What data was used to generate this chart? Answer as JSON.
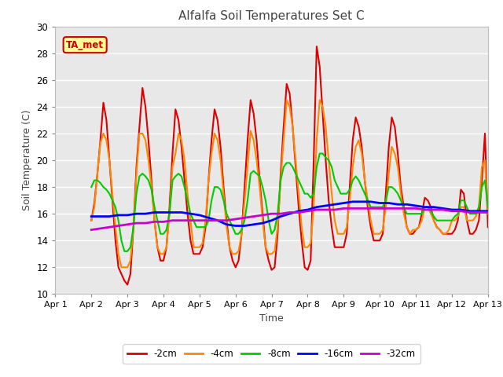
{
  "title": "Alfalfa Soil Temperatures Set C",
  "xlabel": "Time",
  "ylabel": "Soil Temperature (C)",
  "ylim": [
    10,
    30
  ],
  "xlim": [
    0,
    12
  ],
  "xtick_labels": [
    "Apr 1",
    "Apr 2",
    "Apr 3",
    "Apr 4",
    "Apr 5",
    "Apr 6",
    "Apr 7",
    "Apr 8",
    "Apr 9",
    "Apr 10",
    "Apr 11",
    "Apr 12",
    "Apr 13"
  ],
  "xtick_positions": [
    0,
    1,
    2,
    3,
    4,
    5,
    6,
    7,
    8,
    9,
    10,
    11,
    12
  ],
  "ytick_positions": [
    10,
    12,
    14,
    16,
    18,
    20,
    22,
    24,
    26,
    28,
    30
  ],
  "background_color": "#e8e8e8",
  "plot_bg_color": "#e8e8e8",
  "grid_color": "#ffffff",
  "annotation_text": "TA_met",
  "annotation_bg": "#ffff99",
  "annotation_border": "#cc0000",
  "series": {
    "neg2cm": {
      "color": "#dd0000",
      "label": "-2cm",
      "x": [
        1.0,
        1.083,
        1.167,
        1.25,
        1.333,
        1.417,
        1.5,
        1.583,
        1.667,
        1.75,
        1.833,
        1.917,
        2.0,
        2.083,
        2.167,
        2.25,
        2.333,
        2.417,
        2.5,
        2.583,
        2.667,
        2.75,
        2.833,
        2.917,
        3.0,
        3.083,
        3.167,
        3.25,
        3.333,
        3.417,
        3.5,
        3.583,
        3.667,
        3.75,
        3.833,
        3.917,
        4.0,
        4.083,
        4.167,
        4.25,
        4.333,
        4.417,
        4.5,
        4.583,
        4.667,
        4.75,
        4.833,
        4.917,
        5.0,
        5.083,
        5.167,
        5.25,
        5.333,
        5.417,
        5.5,
        5.583,
        5.667,
        5.75,
        5.833,
        5.917,
        6.0,
        6.083,
        6.167,
        6.25,
        6.333,
        6.417,
        6.5,
        6.583,
        6.667,
        6.75,
        6.833,
        6.917,
        7.0,
        7.083,
        7.167,
        7.25,
        7.333,
        7.417,
        7.5,
        7.583,
        7.667,
        7.75,
        7.833,
        7.917,
        8.0,
        8.083,
        8.167,
        8.25,
        8.333,
        8.417,
        8.5,
        8.583,
        8.667,
        8.75,
        8.833,
        8.917,
        9.0,
        9.083,
        9.167,
        9.25,
        9.333,
        9.417,
        9.5,
        9.583,
        9.667,
        9.75,
        9.833,
        9.917,
        10.0,
        10.083,
        10.167,
        10.25,
        10.333,
        10.417,
        10.5,
        10.583,
        10.667,
        10.75,
        10.833,
        10.917,
        11.0,
        11.083,
        11.167,
        11.25,
        11.333,
        11.417,
        11.5,
        11.583,
        11.667,
        11.75,
        11.833,
        11.917,
        12.0
      ],
      "y": [
        15.5,
        16.8,
        19.0,
        21.5,
        24.3,
        23.0,
        20.0,
        17.0,
        14.0,
        12.0,
        11.5,
        11.0,
        10.7,
        11.5,
        15.0,
        19.5,
        22.5,
        25.4,
        24.0,
        21.5,
        18.5,
        15.5,
        13.5,
        12.5,
        12.5,
        13.5,
        16.5,
        20.5,
        23.8,
        23.0,
        21.0,
        18.5,
        16.0,
        14.0,
        13.0,
        13.0,
        13.0,
        13.5,
        15.0,
        18.5,
        21.5,
        23.8,
        23.0,
        21.0,
        18.0,
        15.5,
        13.5,
        12.5,
        12.0,
        12.5,
        14.5,
        18.0,
        21.5,
        24.5,
        23.5,
        21.5,
        18.5,
        16.0,
        13.5,
        12.5,
        11.8,
        12.0,
        14.5,
        19.0,
        22.5,
        25.7,
        25.0,
        22.5,
        19.5,
        16.5,
        14.0,
        12.0,
        11.8,
        12.5,
        20.0,
        28.5,
        27.0,
        23.5,
        20.0,
        17.0,
        15.0,
        13.5,
        13.5,
        13.5,
        13.5,
        14.5,
        18.0,
        21.5,
        23.2,
        22.5,
        21.0,
        18.5,
        16.5,
        15.0,
        14.0,
        14.0,
        14.0,
        14.5,
        17.5,
        21.0,
        23.2,
        22.5,
        20.5,
        18.0,
        16.5,
        15.0,
        14.5,
        14.5,
        14.8,
        15.0,
        16.0,
        17.2,
        17.0,
        16.5,
        15.5,
        15.0,
        14.8,
        14.5,
        14.5,
        14.5,
        14.5,
        14.8,
        15.5,
        17.8,
        17.5,
        15.5,
        14.5,
        14.5,
        14.8,
        15.5,
        18.5,
        22.0,
        15.0
      ]
    },
    "neg4cm": {
      "color": "#ff8800",
      "label": "-4cm",
      "x": [
        1.0,
        1.083,
        1.167,
        1.25,
        1.333,
        1.417,
        1.5,
        1.583,
        1.667,
        1.75,
        1.833,
        1.917,
        2.0,
        2.083,
        2.167,
        2.25,
        2.333,
        2.417,
        2.5,
        2.583,
        2.667,
        2.75,
        2.833,
        2.917,
        3.0,
        3.083,
        3.167,
        3.25,
        3.333,
        3.417,
        3.5,
        3.583,
        3.667,
        3.75,
        3.833,
        3.917,
        4.0,
        4.083,
        4.167,
        4.25,
        4.333,
        4.417,
        4.5,
        4.583,
        4.667,
        4.75,
        4.833,
        4.917,
        5.0,
        5.083,
        5.167,
        5.25,
        5.333,
        5.417,
        5.5,
        5.583,
        5.667,
        5.75,
        5.833,
        5.917,
        6.0,
        6.083,
        6.167,
        6.25,
        6.333,
        6.417,
        6.5,
        6.583,
        6.667,
        6.75,
        6.833,
        6.917,
        7.0,
        7.083,
        7.167,
        7.25,
        7.333,
        7.417,
        7.5,
        7.583,
        7.667,
        7.75,
        7.833,
        7.917,
        8.0,
        8.083,
        8.167,
        8.25,
        8.333,
        8.417,
        8.5,
        8.583,
        8.667,
        8.75,
        8.833,
        8.917,
        9.0,
        9.083,
        9.167,
        9.25,
        9.333,
        9.417,
        9.5,
        9.583,
        9.667,
        9.75,
        9.833,
        9.917,
        10.0,
        10.083,
        10.167,
        10.25,
        10.333,
        10.417,
        10.5,
        10.583,
        10.667,
        10.75,
        10.833,
        10.917,
        11.0,
        11.083,
        11.167,
        11.25,
        11.333,
        11.417,
        11.5,
        11.583,
        11.667,
        11.75,
        11.833,
        11.917,
        12.0
      ],
      "y": [
        15.5,
        16.5,
        19.0,
        21.3,
        22.0,
        21.5,
        20.0,
        17.5,
        15.0,
        13.0,
        12.0,
        12.0,
        12.0,
        12.5,
        15.0,
        19.0,
        22.0,
        22.0,
        21.5,
        20.0,
        18.0,
        15.5,
        13.5,
        13.0,
        13.0,
        13.5,
        16.0,
        19.5,
        20.5,
        22.0,
        21.5,
        20.0,
        17.5,
        15.5,
        13.5,
        13.5,
        13.5,
        13.8,
        15.5,
        18.5,
        20.5,
        22.0,
        21.5,
        20.0,
        17.5,
        15.0,
        13.5,
        13.0,
        13.0,
        13.2,
        14.5,
        17.0,
        19.5,
        22.2,
        21.5,
        20.0,
        18.0,
        15.5,
        13.5,
        13.0,
        13.0,
        13.2,
        15.0,
        18.5,
        21.5,
        24.5,
        24.0,
        22.5,
        20.0,
        17.5,
        15.0,
        13.5,
        13.5,
        13.8,
        16.5,
        21.5,
        24.5,
        24.0,
        22.5,
        20.0,
        17.5,
        15.5,
        14.5,
        14.5,
        14.5,
        15.0,
        17.0,
        19.5,
        21.0,
        21.5,
        20.5,
        18.5,
        17.0,
        15.5,
        14.5,
        14.5,
        14.5,
        14.8,
        16.5,
        19.0,
        21.0,
        20.5,
        19.5,
        17.5,
        16.0,
        15.0,
        14.5,
        14.8,
        14.8,
        15.0,
        15.5,
        16.5,
        16.5,
        16.0,
        15.5,
        15.0,
        14.8,
        14.5,
        14.5,
        14.8,
        15.5,
        15.5,
        15.8,
        16.5,
        16.5,
        15.5,
        15.5,
        15.5,
        15.8,
        16.5,
        19.5,
        20.0,
        16.0
      ]
    },
    "neg8cm": {
      "color": "#00cc00",
      "label": "-8cm",
      "x": [
        1.0,
        1.083,
        1.167,
        1.25,
        1.333,
        1.417,
        1.5,
        1.583,
        1.667,
        1.75,
        1.833,
        1.917,
        2.0,
        2.083,
        2.167,
        2.25,
        2.333,
        2.417,
        2.5,
        2.583,
        2.667,
        2.75,
        2.833,
        2.917,
        3.0,
        3.083,
        3.167,
        3.25,
        3.333,
        3.417,
        3.5,
        3.583,
        3.667,
        3.75,
        3.833,
        3.917,
        4.0,
        4.083,
        4.167,
        4.25,
        4.333,
        4.417,
        4.5,
        4.583,
        4.667,
        4.75,
        4.833,
        4.917,
        5.0,
        5.083,
        5.167,
        5.25,
        5.333,
        5.417,
        5.5,
        5.583,
        5.667,
        5.75,
        5.833,
        5.917,
        6.0,
        6.083,
        6.167,
        6.25,
        6.333,
        6.417,
        6.5,
        6.583,
        6.667,
        6.75,
        6.833,
        6.917,
        7.0,
        7.083,
        7.167,
        7.25,
        7.333,
        7.417,
        7.5,
        7.583,
        7.667,
        7.75,
        7.833,
        7.917,
        8.0,
        8.083,
        8.167,
        8.25,
        8.333,
        8.417,
        8.5,
        8.583,
        8.667,
        8.75,
        8.833,
        8.917,
        9.0,
        9.083,
        9.167,
        9.25,
        9.333,
        9.417,
        9.5,
        9.583,
        9.667,
        9.75,
        9.833,
        9.917,
        10.0,
        10.083,
        10.167,
        10.25,
        10.333,
        10.417,
        10.5,
        10.583,
        10.667,
        10.75,
        10.833,
        10.917,
        11.0,
        11.083,
        11.167,
        11.25,
        11.333,
        11.417,
        11.5,
        11.583,
        11.667,
        11.75,
        11.833,
        11.917,
        12.0
      ],
      "y": [
        18.0,
        18.5,
        18.5,
        18.3,
        18.0,
        17.8,
        17.5,
        17.0,
        16.5,
        15.5,
        14.0,
        13.2,
        13.2,
        13.5,
        15.0,
        17.5,
        18.8,
        19.0,
        18.8,
        18.5,
        17.8,
        16.5,
        15.5,
        14.5,
        14.5,
        14.8,
        16.0,
        18.5,
        18.8,
        19.0,
        18.8,
        18.0,
        17.0,
        16.0,
        15.5,
        15.0,
        15.0,
        15.0,
        15.0,
        15.5,
        17.0,
        18.0,
        18.0,
        17.8,
        17.0,
        16.0,
        15.5,
        15.0,
        14.5,
        14.5,
        14.8,
        15.5,
        17.0,
        19.0,
        19.2,
        19.0,
        18.8,
        18.0,
        17.0,
        15.5,
        14.5,
        14.8,
        16.0,
        18.5,
        19.5,
        19.8,
        19.8,
        19.5,
        19.0,
        18.5,
        18.0,
        17.5,
        17.5,
        17.2,
        17.5,
        19.5,
        20.5,
        20.5,
        20.2,
        20.0,
        19.5,
        18.5,
        18.0,
        17.5,
        17.5,
        17.5,
        17.8,
        18.5,
        18.8,
        18.5,
        18.0,
        17.5,
        17.0,
        16.5,
        16.5,
        16.5,
        16.5,
        16.5,
        17.0,
        18.0,
        18.0,
        17.8,
        17.5,
        17.0,
        16.5,
        16.0,
        16.0,
        16.0,
        16.0,
        16.0,
        16.0,
        16.5,
        16.5,
        16.2,
        15.8,
        15.5,
        15.5,
        15.5,
        15.5,
        15.5,
        15.5,
        15.8,
        16.0,
        17.0,
        17.0,
        16.5,
        16.0,
        16.0,
        16.0,
        16.5,
        18.0,
        18.5,
        16.5
      ]
    },
    "neg16cm": {
      "color": "#0000ff",
      "label": "-16cm",
      "x": [
        1.0,
        1.25,
        1.5,
        1.75,
        2.0,
        2.25,
        2.5,
        2.75,
        3.0,
        3.25,
        3.5,
        3.75,
        4.0,
        4.25,
        4.5,
        4.75,
        5.0,
        5.25,
        5.5,
        5.75,
        6.0,
        6.25,
        6.5,
        6.75,
        7.0,
        7.25,
        7.5,
        7.75,
        8.0,
        8.25,
        8.5,
        8.75,
        9.0,
        9.25,
        9.5,
        9.75,
        10.0,
        10.25,
        10.5,
        10.75,
        11.0,
        11.25,
        11.5,
        11.75,
        12.0
      ],
      "y": [
        15.8,
        15.8,
        15.8,
        15.9,
        15.9,
        16.0,
        16.0,
        16.1,
        16.1,
        16.1,
        16.1,
        16.0,
        15.9,
        15.7,
        15.5,
        15.2,
        15.1,
        15.1,
        15.2,
        15.3,
        15.5,
        15.8,
        16.0,
        16.2,
        16.3,
        16.5,
        16.6,
        16.7,
        16.8,
        16.9,
        16.9,
        16.9,
        16.8,
        16.8,
        16.7,
        16.7,
        16.6,
        16.5,
        16.5,
        16.4,
        16.3,
        16.3,
        16.2,
        16.2,
        16.2
      ]
    },
    "neg32cm": {
      "color": "#cc00cc",
      "label": "-32cm",
      "x": [
        1.0,
        1.25,
        1.5,
        1.75,
        2.0,
        2.25,
        2.5,
        2.75,
        3.0,
        3.25,
        3.5,
        3.75,
        4.0,
        4.25,
        4.5,
        4.75,
        5.0,
        5.25,
        5.5,
        5.75,
        6.0,
        6.25,
        6.5,
        6.75,
        7.0,
        7.25,
        7.5,
        7.75,
        8.0,
        8.25,
        8.5,
        8.75,
        9.0,
        9.25,
        9.5,
        9.75,
        10.0,
        10.25,
        10.5,
        10.75,
        11.0,
        11.25,
        11.5,
        11.75,
        12.0
      ],
      "y": [
        14.8,
        14.9,
        15.0,
        15.1,
        15.2,
        15.3,
        15.3,
        15.4,
        15.4,
        15.5,
        15.5,
        15.5,
        15.5,
        15.5,
        15.5,
        15.5,
        15.6,
        15.7,
        15.8,
        15.9,
        16.0,
        16.0,
        16.1,
        16.1,
        16.2,
        16.3,
        16.3,
        16.3,
        16.4,
        16.4,
        16.4,
        16.4,
        16.4,
        16.4,
        16.4,
        16.4,
        16.4,
        16.3,
        16.3,
        16.3,
        16.2,
        16.2,
        16.1,
        16.1,
        16.1
      ]
    }
  }
}
